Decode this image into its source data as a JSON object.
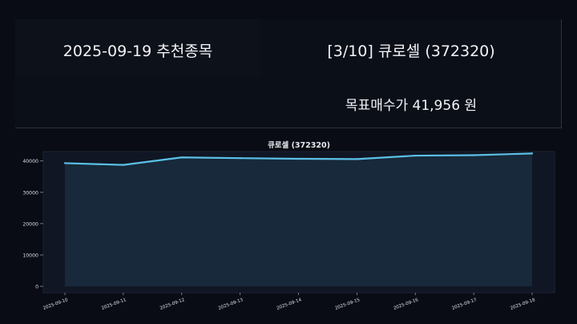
{
  "header": {
    "title": "2025-09-19 추천종목",
    "stock": "[3/10] 큐로셀 (372320)",
    "target": "목표매수가 41,956 원"
  },
  "colors": {
    "line": "#5bc0e6",
    "fill": "#17293a",
    "plot_bg": "#101624",
    "text": "#d8dde6"
  },
  "chart_data": {
    "type": "area",
    "title": "큐로셀 (372320)",
    "x": [
      "2025-09-10",
      "2025-09-11",
      "2025-09-12",
      "2025-09-13",
      "2025-09-14",
      "2025-09-15",
      "2025-09-16",
      "2025-09-17",
      "2025-09-18"
    ],
    "series": [
      {
        "values": [
          39300,
          38750,
          41150,
          40900,
          40700,
          40600,
          41700,
          41850,
          42400
        ]
      }
    ],
    "ylim": [
      0,
      43000
    ],
    "yticks": [
      "0",
      "10000",
      "20000",
      "30000",
      "40000"
    ],
    "ytick_values": [
      0,
      10000,
      20000,
      30000,
      40000
    ],
    "grid": false,
    "legend": "none"
  }
}
